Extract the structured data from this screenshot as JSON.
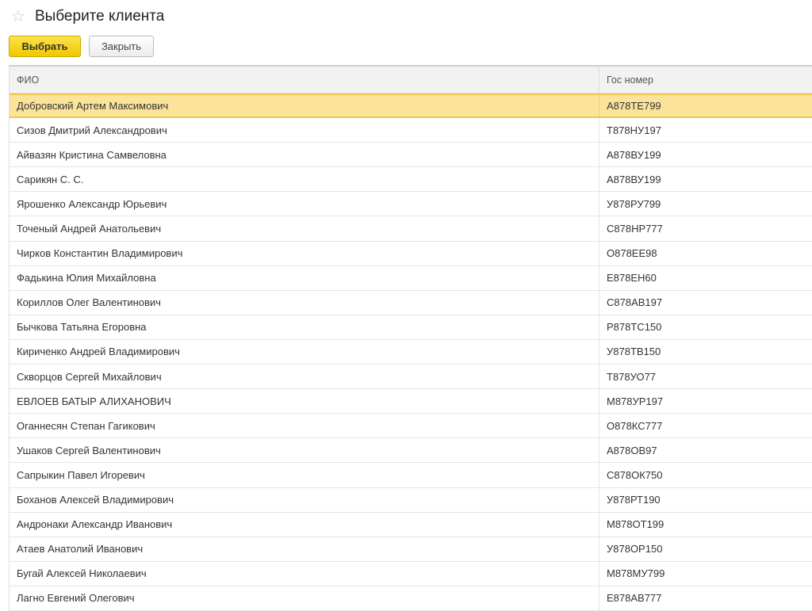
{
  "window": {
    "title": "Выберите клиента",
    "favorite_icon": "star-icon"
  },
  "toolbar": {
    "select_label": "Выбрать",
    "close_label": "Закрыть",
    "accent": "#f0c800"
  },
  "table": {
    "columns": [
      "ФИО",
      "Гос номер"
    ],
    "selected_index": 0,
    "rows": [
      {
        "name": "Добровский Артем Максимович",
        "plate": "А878ТЕ799"
      },
      {
        "name": "Сизов Дмитрий Александрович",
        "plate": "Т878НУ197"
      },
      {
        "name": "Айвазян  Кристина Самвеловна",
        "plate": "А878ВУ199"
      },
      {
        "name": "Сарикян С. С.",
        "plate": "А878ВУ199"
      },
      {
        "name": "Ярошенко Александр Юрьевич",
        "plate": "У878РУ799"
      },
      {
        "name": "Точеный Андрей Анатольевич",
        "plate": "С878НР777"
      },
      {
        "name": "Чирков  Константин Владимирович",
        "plate": "О878ЕЕ98"
      },
      {
        "name": "Фадькина Юлия Михайловна",
        "plate": "Е878ЕН60"
      },
      {
        "name": "Кориллов Олег Валентинович",
        "plate": "С878АВ197"
      },
      {
        "name": "Бычкова Татьяна Егоровна",
        "plate": "Р878ТС150"
      },
      {
        "name": "Кириченко  Андрей Владимирович",
        "plate": "У878ТВ150"
      },
      {
        "name": "Скворцов Сергей Михайлович",
        "plate": "Т878УО77"
      },
      {
        "name": "ЕВЛОЕВ  БАТЫР АЛИХАНОВИЧ",
        "plate": "М878УР197"
      },
      {
        "name": "Оганнесян  Степан Гагикович",
        "plate": "О878КС777"
      },
      {
        "name": "Ушаков  Сергей Валентинович",
        "plate": "А878ОВ97"
      },
      {
        "name": "Сапрыкин Павел Игоревич",
        "plate": "С878ОК750"
      },
      {
        "name": "Боханов Алексей Владимирович",
        "plate": "У878РТ190"
      },
      {
        "name": "Андронаки  Александр Иванович",
        "plate": "М878ОТ199"
      },
      {
        "name": "Атаев Анатолий Иванович",
        "plate": "У878ОР150"
      },
      {
        "name": "Бугай Алексей Николаевич",
        "plate": "М878МУ799"
      },
      {
        "name": "Лагно Евгений Олегович",
        "plate": "Е878АВ777"
      }
    ]
  }
}
